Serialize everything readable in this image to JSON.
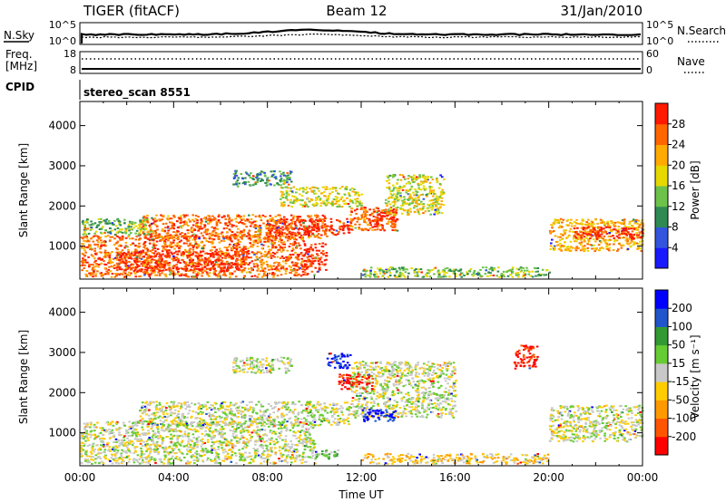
{
  "header": {
    "radar": "TIGER (fitACF)",
    "beam": "Beam 12",
    "date": "31/Jan/2010"
  },
  "sky_panel": {
    "left_label": "N.Sky",
    "left_ticks": [
      "10^5",
      "10^0"
    ],
    "right_ticks": [
      "10^5",
      "10^0"
    ],
    "right_label": "N.Search"
  },
  "freq_panel": {
    "left_label_1": "Freq.",
    "left_label_2": "[MHz]",
    "left_ticks": [
      "18",
      "8"
    ],
    "right_ticks": [
      "60",
      "0"
    ],
    "right_label": "Nave"
  },
  "cpid_panel": {
    "label": "CPID",
    "value": "stereo_scan 8551"
  },
  "chart_data": [
    {
      "type": "heatmap",
      "name": "power",
      "ylabel": "Slant Range [km]",
      "y_ticks": [
        1000,
        2000,
        3000,
        4000
      ],
      "y_tick_labels": [
        "1000",
        "2000",
        "3000",
        "4000"
      ],
      "ylim": [
        180,
        4600
      ],
      "xlim_hours": [
        0,
        24
      ],
      "colorbar_label": "Power [dB]",
      "colorbar_ticks": [
        "4",
        "8",
        "12",
        "16",
        "20",
        "24",
        "28"
      ],
      "colorbar_colors": [
        "#1a1aff",
        "#3355dd",
        "#2f8a52",
        "#6cc24a",
        "#e6d800",
        "#ffaa00",
        "#ff6600",
        "#ff1a00"
      ],
      "regions": [
        {
          "x": [
            0.0,
            9.5
          ],
          "y": [
            250,
            1300
          ],
          "level": 6
        },
        {
          "x": [
            1.5,
            7.0
          ],
          "y": [
            400,
            900
          ],
          "level": 7
        },
        {
          "x": [
            2.5,
            10.5
          ],
          "y": [
            1200,
            1800
          ],
          "level": 6
        },
        {
          "x": [
            8.0,
            11.5
          ],
          "y": [
            1300,
            1700
          ],
          "level": 7
        },
        {
          "x": [
            9.5,
            10.5
          ],
          "y": [
            300,
            1100
          ],
          "level": 7
        },
        {
          "x": [
            11.5,
            13.5
          ],
          "y": [
            1400,
            2000
          ],
          "level": 6
        },
        {
          "x": [
            12.5,
            13.5
          ],
          "y": [
            1500,
            1900
          ],
          "level": 7
        },
        {
          "x": [
            13.0,
            15.5
          ],
          "y": [
            1800,
            2800
          ],
          "level": 4
        },
        {
          "x": [
            6.5,
            9.0
          ],
          "y": [
            2500,
            2900
          ],
          "level": 2
        },
        {
          "x": [
            8.5,
            12.0
          ],
          "y": [
            2000,
            2500
          ],
          "level": 4
        },
        {
          "x": [
            12.0,
            20.0
          ],
          "y": [
            250,
            500
          ],
          "level": 3
        },
        {
          "x": [
            20.0,
            24.0
          ],
          "y": [
            900,
            1700
          ],
          "level": 5
        },
        {
          "x": [
            21.0,
            24.0
          ],
          "y": [
            1200,
            1500
          ],
          "level": 7
        },
        {
          "x": [
            0.0,
            3.0
          ],
          "y": [
            1300,
            1700
          ],
          "level": 3
        }
      ]
    },
    {
      "type": "heatmap",
      "name": "velocity",
      "ylabel": "Slant Range [km]",
      "y_ticks": [
        1000,
        2000,
        3000,
        4000
      ],
      "y_tick_labels": [
        "1000",
        "2000",
        "3000",
        "4000"
      ],
      "ylim": [
        180,
        4600
      ],
      "xlabel": "Time UT",
      "x_ticks": [
        0,
        4,
        8,
        12,
        16,
        20,
        24
      ],
      "x_tick_labels": [
        "00:00",
        "04:00",
        "08:00",
        "12:00",
        "16:00",
        "20:00",
        "00:00"
      ],
      "xlim_hours": [
        0,
        24
      ],
      "colorbar_label": "Velocity [m s⁻¹]",
      "colorbar_ticks": [
        "-200",
        "-100",
        "-50",
        "-15",
        "15",
        "50",
        "100",
        "200"
      ],
      "colorbar_colors": [
        "#ff0000",
        "#ff5500",
        "#ff9900",
        "#ffcc00",
        "#c8c8c8",
        "#66cc33",
        "#339933",
        "#2255cc",
        "#0000ff"
      ],
      "regions": [
        {
          "x": [
            0.0,
            10.0
          ],
          "y": [
            250,
            1300
          ],
          "level": 4
        },
        {
          "x": [
            2.5,
            11.5
          ],
          "y": [
            1200,
            1800
          ],
          "level": 4
        },
        {
          "x": [
            11.5,
            16.0
          ],
          "y": [
            1400,
            2800
          ],
          "level": 4
        },
        {
          "x": [
            20.0,
            24.0
          ],
          "y": [
            800,
            1700
          ],
          "level": 4
        },
        {
          "x": [
            6.5,
            9.0
          ],
          "y": [
            2500,
            2900
          ],
          "level": 4
        },
        {
          "x": [
            11.0,
            12.5
          ],
          "y": [
            2100,
            2500
          ],
          "level": 0
        },
        {
          "x": [
            12.0,
            13.5
          ],
          "y": [
            1300,
            1600
          ],
          "level": 8
        },
        {
          "x": [
            10.5,
            11.5
          ],
          "y": [
            2600,
            3000
          ],
          "level": 8
        },
        {
          "x": [
            18.5,
            19.5
          ],
          "y": [
            2600,
            3200
          ],
          "level": 0
        },
        {
          "x": [
            12.0,
            20.0
          ],
          "y": [
            250,
            500
          ],
          "level": 3
        },
        {
          "x": [
            10.0,
            11.0
          ],
          "y": [
            350,
            600
          ],
          "level": 5
        }
      ]
    }
  ]
}
